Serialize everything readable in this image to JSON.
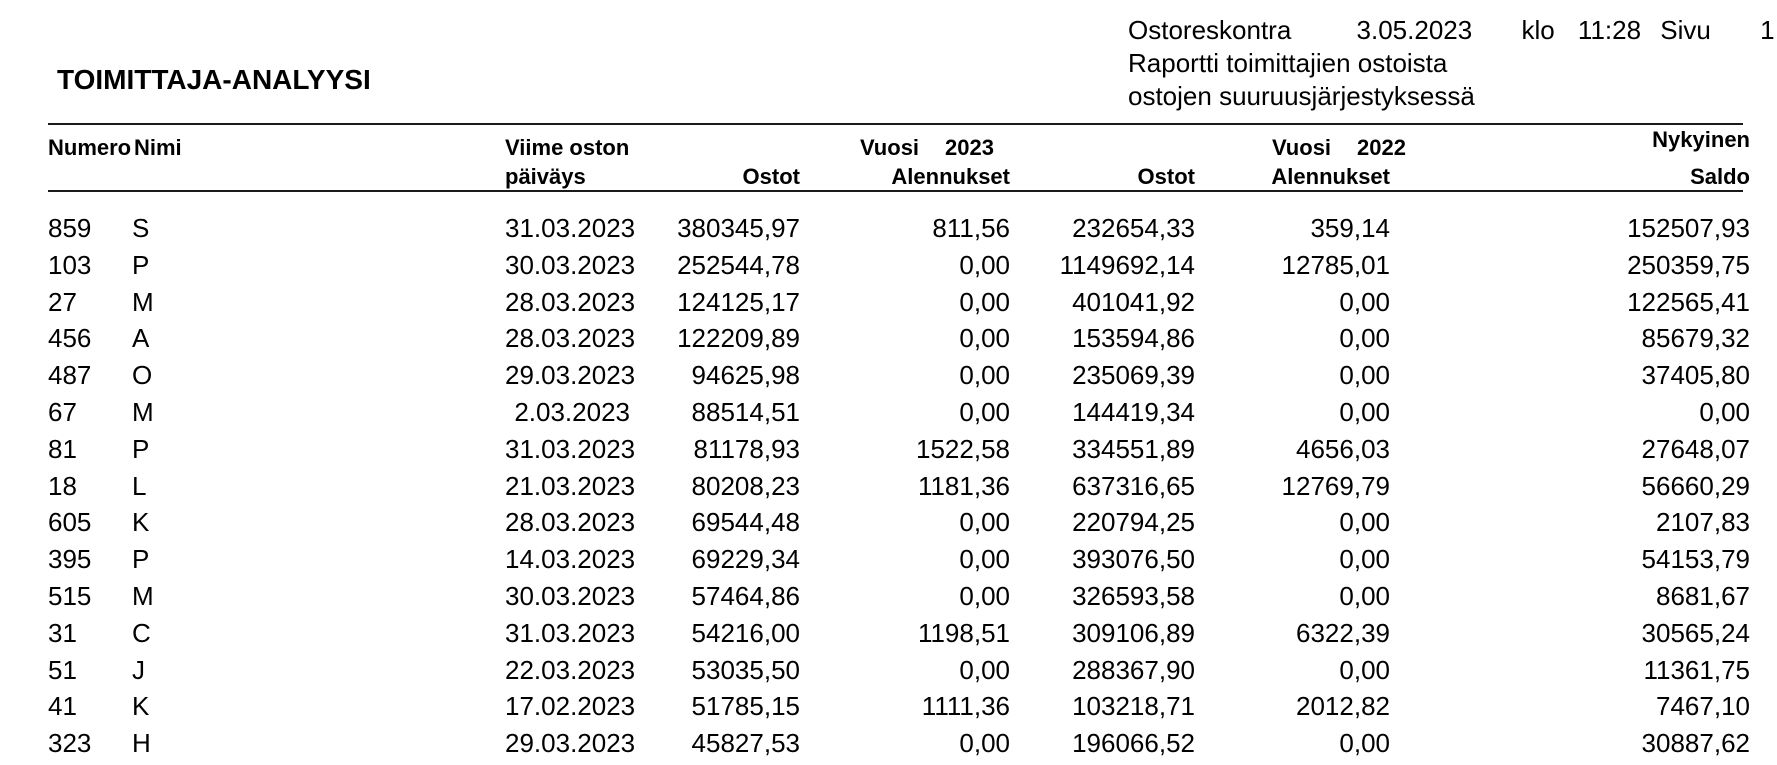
{
  "report": {
    "title": "TOIMITTAJA-ANALYYSI",
    "meta": {
      "app": "Ostoreskontra",
      "date": "3.05.2023",
      "klo_label": "klo",
      "time": "11:28",
      "page_label": "Sivu",
      "page_number": "1",
      "subtitle_line1": "Raportti toimittajien ostoista",
      "subtitle_line2": "ostojen suuruusjärjestyksessä"
    },
    "columns": {
      "numero": "Numero",
      "nimi": "Nimi",
      "viime_oston": "Viime oston",
      "paivays": "päiväys",
      "vuosi_label": "Vuosi",
      "year_2023": "2023",
      "year_2022": "2022",
      "ostot_2023": "Ostot",
      "alennukset_2023": "Alennukset",
      "ostot_2022": "Ostot",
      "alennukset_2022": "Alennukset",
      "nykyinen": "Nykyinen",
      "saldo": "Saldo"
    },
    "rows": [
      {
        "numero": "859",
        "nimi": "S",
        "paivays": "31.03.2023",
        "ostot_2023": "380345,97",
        "alennukset_2023": "811,56",
        "ostot_2022": "232654,33",
        "alennukset_2022": "359,14",
        "saldo": "152507,93"
      },
      {
        "numero": "103",
        "nimi": "P",
        "paivays": "30.03.2023",
        "ostot_2023": "252544,78",
        "alennukset_2023": "0,00",
        "ostot_2022": "1149692,14",
        "alennukset_2022": "12785,01",
        "saldo": "250359,75"
      },
      {
        "numero": "27",
        "nimi": "M",
        "paivays": "28.03.2023",
        "ostot_2023": "124125,17",
        "alennukset_2023": "0,00",
        "ostot_2022": "401041,92",
        "alennukset_2022": "0,00",
        "saldo": "122565,41"
      },
      {
        "numero": "456",
        "nimi": "A",
        "paivays": "28.03.2023",
        "ostot_2023": "122209,89",
        "alennukset_2023": "0,00",
        "ostot_2022": "153594,86",
        "alennukset_2022": "0,00",
        "saldo": "85679,32"
      },
      {
        "numero": "487",
        "nimi": "O",
        "paivays": "29.03.2023",
        "ostot_2023": "94625,98",
        "alennukset_2023": "0,00",
        "ostot_2022": "235069,39",
        "alennukset_2022": "0,00",
        "saldo": "37405,80"
      },
      {
        "numero": "67",
        "nimi": "M",
        "paivays": "2.03.2023",
        "ostot_2023": "88514,51",
        "alennukset_2023": "0,00",
        "ostot_2022": "144419,34",
        "alennukset_2022": "0,00",
        "saldo": "0,00"
      },
      {
        "numero": "81",
        "nimi": "P",
        "paivays": "31.03.2023",
        "ostot_2023": "81178,93",
        "alennukset_2023": "1522,58",
        "ostot_2022": "334551,89",
        "alennukset_2022": "4656,03",
        "saldo": "27648,07"
      },
      {
        "numero": "18",
        "nimi": "L",
        "paivays": "21.03.2023",
        "ostot_2023": "80208,23",
        "alennukset_2023": "1181,36",
        "ostot_2022": "637316,65",
        "alennukset_2022": "12769,79",
        "saldo": "56660,29"
      },
      {
        "numero": "605",
        "nimi": "K",
        "paivays": "28.03.2023",
        "ostot_2023": "69544,48",
        "alennukset_2023": "0,00",
        "ostot_2022": "220794,25",
        "alennukset_2022": "0,00",
        "saldo": "2107,83"
      },
      {
        "numero": "395",
        "nimi": "P",
        "paivays": "14.03.2023",
        "ostot_2023": "69229,34",
        "alennukset_2023": "0,00",
        "ostot_2022": "393076,50",
        "alennukset_2022": "0,00",
        "saldo": "54153,79"
      },
      {
        "numero": "515",
        "nimi": "M",
        "paivays": "30.03.2023",
        "ostot_2023": "57464,86",
        "alennukset_2023": "0,00",
        "ostot_2022": "326593,58",
        "alennukset_2022": "0,00",
        "saldo": "8681,67"
      },
      {
        "numero": "31",
        "nimi": "C",
        "paivays": "31.03.2023",
        "ostot_2023": "54216,00",
        "alennukset_2023": "1198,51",
        "ostot_2022": "309106,89",
        "alennukset_2022": "6322,39",
        "saldo": "30565,24"
      },
      {
        "numero": "51",
        "nimi": "J",
        "paivays": "22.03.2023",
        "ostot_2023": "53035,50",
        "alennukset_2023": "0,00",
        "ostot_2022": "288367,90",
        "alennukset_2022": "0,00",
        "saldo": "11361,75"
      },
      {
        "numero": "41",
        "nimi": "K",
        "paivays": "17.02.2023",
        "ostot_2023": "51785,15",
        "alennukset_2023": "1111,36",
        "ostot_2022": "103218,71",
        "alennukset_2022": "2012,82",
        "saldo": "7467,10"
      },
      {
        "numero": "323",
        "nimi": "H",
        "paivays": "29.03.2023",
        "ostot_2023": "45827,53",
        "alennukset_2023": "0,00",
        "ostot_2022": "196066,52",
        "alennukset_2022": "0,00",
        "saldo": "30887,62"
      }
    ]
  }
}
